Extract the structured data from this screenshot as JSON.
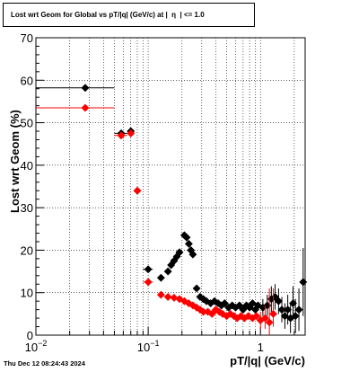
{
  "chart_data": {
    "type": "scatter",
    "title": "Lost wrt Geom for Global vs pT/|q| (GeV/c) at |  η  | <= 1.0",
    "xlabel": "pT/|q| (GeV/c)",
    "ylabel": "Lost wrt Geom (%)",
    "xscale": "log",
    "xlim": [
      0.01,
      2.5
    ],
    "ylim": [
      0,
      70
    ],
    "grid": true,
    "x_ticks": [
      {
        "value": 0.01,
        "base": "10",
        "exp": "−2"
      },
      {
        "value": 0.1,
        "base": "10",
        "exp": "−1"
      },
      {
        "value": 1,
        "base": "1",
        "exp": ""
      }
    ],
    "y_ticks": [
      0,
      10,
      20,
      30,
      40,
      50,
      60,
      70
    ],
    "series": [
      {
        "color": "#000000",
        "points": [
          {
            "x": 0.0275,
            "y": 58.2,
            "xlo": 0.01,
            "xhi": 0.05
          },
          {
            "x": 0.0575,
            "y": 47.5,
            "xlo": 0.05,
            "xhi": 0.065
          },
          {
            "x": 0.07,
            "y": 48.0,
            "xlo": 0.065,
            "xhi": 0.075
          },
          {
            "x": 0.08,
            "y": 34.0,
            "xlo": 0.075,
            "xhi": 0.085
          },
          {
            "x": 0.1,
            "y": 15.5,
            "xlo": 0.09,
            "xhi": 0.11
          },
          {
            "x": 0.13,
            "y": 13.5
          },
          {
            "x": 0.15,
            "y": 15.0
          },
          {
            "x": 0.16,
            "y": 16.5
          },
          {
            "x": 0.17,
            "y": 17.5
          },
          {
            "x": 0.18,
            "y": 18.5
          },
          {
            "x": 0.19,
            "y": 19.5
          },
          {
            "x": 0.21,
            "y": 23.5
          },
          {
            "x": 0.22,
            "y": 23.0
          },
          {
            "x": 0.23,
            "y": 21.5
          },
          {
            "x": 0.24,
            "y": 20.0
          },
          {
            "x": 0.25,
            "y": 19.0
          },
          {
            "x": 0.27,
            "y": 11.0
          },
          {
            "x": 0.29,
            "y": 9.0
          },
          {
            "x": 0.31,
            "y": 8.5
          },
          {
            "x": 0.33,
            "y": 8.0
          },
          {
            "x": 0.36,
            "y": 7.5
          },
          {
            "x": 0.39,
            "y": 8.0
          },
          {
            "x": 0.42,
            "y": 7.5
          },
          {
            "x": 0.45,
            "y": 7.0
          },
          {
            "x": 0.48,
            "y": 7.5
          },
          {
            "x": 0.52,
            "y": 6.5
          },
          {
            "x": 0.56,
            "y": 7.0
          },
          {
            "x": 0.6,
            "y": 6.5
          },
          {
            "x": 0.65,
            "y": 7.0
          },
          {
            "x": 0.7,
            "y": 6.0
          },
          {
            "x": 0.75,
            "y": 7.0
          },
          {
            "x": 0.8,
            "y": 6.5
          },
          {
            "x": 0.85,
            "y": 7.5
          },
          {
            "x": 0.9,
            "y": 6.0
          },
          {
            "x": 0.95,
            "y": 7.0
          },
          {
            "x": 1.05,
            "y": 6.5,
            "elo": 2.0,
            "ehi": 2.0
          },
          {
            "x": 1.15,
            "y": 7.0,
            "elo": 2.5,
            "ehi": 2.5
          },
          {
            "x": 1.25,
            "y": 8.5,
            "elo": 3.0,
            "ehi": 3.0
          },
          {
            "x": 1.35,
            "y": 9.0,
            "elo": 3.0,
            "ehi": 3.0
          },
          {
            "x": 1.45,
            "y": 8.0,
            "elo": 3.0,
            "ehi": 3.0
          },
          {
            "x": 1.55,
            "y": 6.0,
            "elo": 3.0,
            "ehi": 3.0
          },
          {
            "x": 1.65,
            "y": 4.5,
            "elo": 3.0,
            "ehi": 3.0
          },
          {
            "x": 1.75,
            "y": 6.0,
            "elo": 3.5,
            "ehi": 3.5
          },
          {
            "x": 1.85,
            "y": 4.0,
            "elo": 3.5,
            "ehi": 3.5
          },
          {
            "x": 1.95,
            "y": 7.5,
            "elo": 4.0,
            "ehi": 4.0
          },
          {
            "x": 2.05,
            "y": 4.5,
            "elo": 4.0,
            "ehi": 4.0
          },
          {
            "x": 2.2,
            "y": 6.0,
            "elo": 5.0,
            "ehi": 5.0
          },
          {
            "x": 2.4,
            "y": 12.5,
            "elo": 8.0,
            "ehi": 8.0
          }
        ]
      },
      {
        "color": "#ff0000",
        "points": [
          {
            "x": 0.0275,
            "y": 53.5,
            "xlo": 0.01,
            "xhi": 0.05
          },
          {
            "x": 0.0575,
            "y": 47.0,
            "xlo": 0.05,
            "xhi": 0.065
          },
          {
            "x": 0.07,
            "y": 47.5,
            "xlo": 0.065,
            "xhi": 0.075
          },
          {
            "x": 0.08,
            "y": 34.0,
            "xlo": 0.075,
            "xhi": 0.085
          },
          {
            "x": 0.1,
            "y": 12.5,
            "xlo": 0.09,
            "xhi": 0.11
          },
          {
            "x": 0.13,
            "y": 9.5
          },
          {
            "x": 0.15,
            "y": 9.0
          },
          {
            "x": 0.17,
            "y": 8.8
          },
          {
            "x": 0.19,
            "y": 8.5
          },
          {
            "x": 0.21,
            "y": 8.0
          },
          {
            "x": 0.23,
            "y": 7.5
          },
          {
            "x": 0.25,
            "y": 7.0
          },
          {
            "x": 0.27,
            "y": 6.5
          },
          {
            "x": 0.29,
            "y": 6.0
          },
          {
            "x": 0.31,
            "y": 5.5
          },
          {
            "x": 0.34,
            "y": 5.5
          },
          {
            "x": 0.37,
            "y": 5.0
          },
          {
            "x": 0.4,
            "y": 6.0
          },
          {
            "x": 0.43,
            "y": 5.5
          },
          {
            "x": 0.46,
            "y": 5.0
          },
          {
            "x": 0.5,
            "y": 4.5
          },
          {
            "x": 0.54,
            "y": 5.0
          },
          {
            "x": 0.58,
            "y": 4.5
          },
          {
            "x": 0.62,
            "y": 4.0
          },
          {
            "x": 0.67,
            "y": 4.5
          },
          {
            "x": 0.72,
            "y": 4.0
          },
          {
            "x": 0.78,
            "y": 4.5
          },
          {
            "x": 0.85,
            "y": 4.0
          },
          {
            "x": 0.92,
            "y": 4.5
          },
          {
            "x": 1.0,
            "y": 3.5,
            "elo": 2.0,
            "ehi": 2.0
          },
          {
            "x": 1.1,
            "y": 4.0,
            "elo": 2.5,
            "ehi": 3.0
          },
          {
            "x": 1.2,
            "y": 3.0,
            "elo": 3.0,
            "ehi": 8.0
          },
          {
            "x": 1.3,
            "y": 5.0,
            "elo": 3.0,
            "ehi": 6.0
          }
        ]
      }
    ]
  },
  "datestamp": "Thu Dec 12 08:24:43 2024"
}
